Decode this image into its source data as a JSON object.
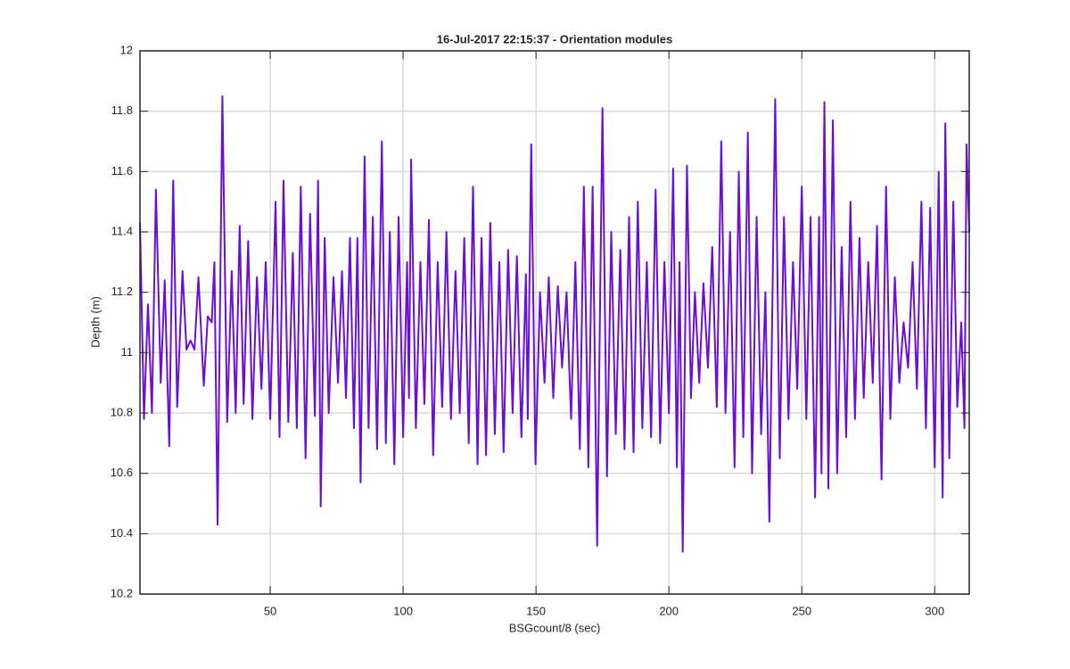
{
  "chart_data": {
    "type": "line",
    "title": "16-Jul-2017 22:15:37 - Orientation modules",
    "x_label": "BSGcount/8 (sec)",
    "y_label": "Depth (m)",
    "color": "#6a0fd6",
    "grid": true,
    "xlim": [
      1,
      313
    ],
    "ylim": [
      10.2,
      12
    ],
    "xticks": [
      50,
      100,
      150,
      200,
      250,
      300
    ],
    "yticks": [
      10.2,
      10.4,
      10.6,
      10.8,
      11,
      11.2,
      11.4,
      11.6,
      11.8,
      12
    ],
    "x": [
      1,
      2.5,
      4,
      5.5,
      7,
      8.8,
      10.3,
      12,
      13.5,
      15,
      17,
      18.5,
      20,
      21.5,
      23,
      25,
      26.5,
      28,
      29,
      30.2,
      32,
      33.8,
      35.5,
      37,
      38.5,
      40,
      41.7,
      43.3,
      45,
      46.7,
      48.3,
      50,
      52,
      53.5,
      55,
      56.8,
      58.5,
      60,
      61.5,
      63.3,
      65,
      66.8,
      68,
      69,
      70.5,
      72,
      73.8,
      75.5,
      77,
      78.5,
      80,
      81.5,
      82.8,
      84,
      85.5,
      87,
      88.6,
      90.2,
      92,
      93.5,
      95,
      96.7,
      98.3,
      100,
      101.5,
      102.2,
      103,
      104.8,
      106.5,
      108,
      109.7,
      111.3,
      113,
      114.7,
      116.3,
      118,
      119.7,
      121.3,
      123,
      124.7,
      126.3,
      128,
      129.5,
      131.2,
      132.8,
      134.5,
      136.2,
      137.8,
      139.5,
      141.2,
      142.8,
      144.5,
      146.2,
      146.9,
      148.2,
      149.8,
      151.5,
      153.2,
      154.8,
      156.5,
      158.2,
      159.8,
      161.5,
      163.2,
      164.8,
      166.5,
      168,
      169.7,
      171.3,
      173,
      175,
      176.7,
      178.3,
      180,
      181.7,
      183.3,
      185,
      186.7,
      188.3,
      190,
      191.7,
      193.3,
      195,
      196.7,
      198.3,
      200,
      201.6,
      203,
      204,
      205.2,
      206.8,
      208.3,
      209.8,
      211.4,
      213,
      214.7,
      216.3,
      218,
      219.7,
      221.3,
      223,
      224.7,
      226.3,
      228,
      229.7,
      231.3,
      233,
      234.7,
      236.3,
      237.8,
      240,
      241.7,
      243.3,
      245,
      246.7,
      248.3,
      250,
      251.7,
      253.3,
      255,
      256.5,
      257.4,
      258.5,
      260,
      261.7,
      263.3,
      265,
      266.7,
      268.3,
      270,
      271.7,
      273.3,
      275,
      276.7,
      278.3,
      280,
      281.7,
      283.3,
      285,
      286.7,
      288.3,
      290,
      291.7,
      293.3,
      295,
      296.7,
      298.3,
      300,
      301.5,
      303,
      304,
      305.5,
      307,
      308.5,
      310,
      311.2,
      312,
      313
    ],
    "values": [
      11.43,
      10.78,
      11.16,
      10.8,
      11.54,
      10.9,
      11.24,
      10.69,
      11.57,
      10.82,
      11.27,
      11.01,
      11.04,
      11.01,
      11.25,
      10.89,
      11.12,
      11.1,
      11.3,
      10.43,
      11.85,
      10.77,
      11.27,
      10.8,
      11.42,
      10.83,
      11.37,
      10.78,
      11.25,
      10.88,
      11.3,
      10.78,
      11.5,
      10.72,
      11.57,
      10.77,
      11.33,
      10.75,
      11.55,
      10.65,
      11.46,
      10.79,
      11.57,
      10.49,
      11.38,
      10.8,
      11.25,
      10.9,
      11.27,
      10.85,
      11.38,
      10.75,
      11.38,
      10.57,
      11.65,
      10.75,
      11.45,
      10.68,
      11.7,
      10.7,
      11.4,
      10.63,
      11.45,
      10.72,
      11.3,
      10.85,
      11.64,
      10.75,
      11.3,
      10.83,
      11.44,
      10.66,
      11.3,
      10.82,
      11.4,
      10.78,
      11.27,
      10.8,
      11.38,
      10.7,
      11.55,
      10.63,
      11.38,
      10.66,
      11.43,
      10.73,
      11.3,
      10.67,
      11.34,
      10.8,
      11.32,
      10.72,
      11.26,
      10.78,
      11.69,
      10.63,
      11.2,
      10.9,
      11.25,
      10.85,
      11.22,
      10.95,
      11.2,
      10.78,
      11.3,
      10.68,
      11.55,
      10.62,
      11.55,
      10.36,
      11.81,
      10.59,
      11.4,
      10.73,
      11.34,
      10.68,
      11.45,
      10.67,
      11.5,
      10.75,
      11.3,
      10.72,
      11.54,
      10.7,
      11.3,
      10.8,
      11.61,
      10.62,
      11.3,
      10.34,
      11.62,
      10.85,
      11.2,
      10.9,
      11.23,
      10.95,
      11.35,
      10.82,
      11.7,
      10.8,
      11.4,
      10.62,
      11.6,
      10.72,
      11.73,
      10.6,
      11.45,
      10.73,
      11.2,
      10.44,
      11.84,
      10.65,
      11.45,
      10.78,
      11.3,
      10.88,
      11.55,
      10.78,
      11.45,
      10.52,
      11.45,
      10.6,
      11.83,
      10.55,
      11.77,
      10.6,
      11.35,
      10.72,
      11.5,
      10.78,
      11.38,
      10.85,
      11.3,
      10.9,
      11.42,
      10.58,
      11.55,
      10.78,
      11.25,
      10.9,
      11.1,
      10.95,
      11.3,
      10.88,
      11.5,
      10.75,
      11.48,
      10.62,
      11.6,
      10.52,
      11.76,
      10.65,
      11.5,
      10.82,
      11.1,
      10.75,
      11.69,
      11.4
    ]
  }
}
